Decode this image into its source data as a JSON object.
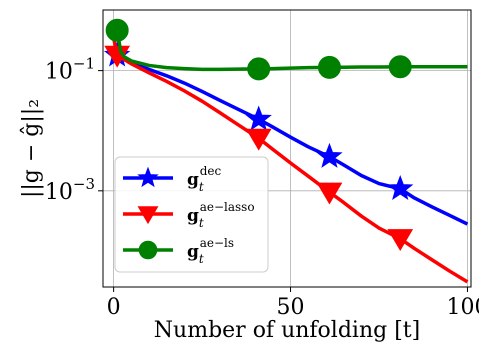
{
  "chart_data": {
    "type": "line",
    "title": "",
    "xlabel": "Number of unfolding [t]",
    "ylabel": "||g − ĝ||₂",
    "x_scale": "linear",
    "y_scale": "log",
    "xlim": [
      -3,
      101
    ],
    "ylim": [
      2.51e-05,
      1.02
    ],
    "x_ticks": [
      0,
      50,
      100
    ],
    "x_tick_labels": [
      "0",
      "50",
      "100"
    ],
    "y_ticks": [
      0.1,
      0.001
    ],
    "y_tick_labels": [
      "10−1",
      "10−3"
    ],
    "grid": true,
    "legend_position": "lower-left",
    "series": [
      {
        "name": "g_t^dec",
        "legend_base": "g",
        "legend_sub": "t",
        "legend_sup": "dec",
        "color": "#0000ff",
        "marker": "star",
        "x": [
          1,
          5,
          10,
          15,
          20,
          25,
          30,
          35,
          41,
          45,
          50,
          55,
          61,
          65,
          70,
          75,
          81,
          85,
          90,
          95,
          100
        ],
        "y": [
          0.18,
          0.135,
          0.105,
          0.082,
          0.062,
          0.045,
          0.032,
          0.023,
          0.0155,
          0.0115,
          0.0078,
          0.0054,
          0.0037,
          0.0027,
          0.0018,
          0.00132,
          0.00108,
          0.00076,
          0.00054,
          0.00039,
          0.00028
        ]
      },
      {
        "name": "g_t^ae-lasso",
        "legend_base": "g",
        "legend_sub": "t",
        "legend_sup": "ae−lasso",
        "color": "#ff0000",
        "marker": "triangle-down",
        "x": [
          0,
          1,
          5,
          10,
          15,
          20,
          25,
          30,
          35,
          41,
          45,
          50,
          55,
          61,
          65,
          70,
          75,
          81,
          85,
          90,
          95,
          100
        ],
        "y": [
          0.35,
          0.18,
          0.13,
          0.092,
          0.066,
          0.046,
          0.031,
          0.02,
          0.0128,
          0.0075,
          0.0049,
          0.0029,
          0.00175,
          0.00095,
          0.00064,
          0.00038,
          0.00024,
          0.00016,
          0.00011,
          7.1e-05,
          4.6e-05,
          3.05e-05
        ]
      },
      {
        "name": "g_t^ae-ls",
        "legend_base": "g",
        "legend_sub": "t",
        "legend_sup": "ae−ls",
        "color": "#008000",
        "marker": "circle",
        "x": [
          1,
          2,
          3,
          5,
          10,
          15,
          20,
          25,
          30,
          35,
          41,
          45,
          50,
          55,
          61,
          65,
          70,
          75,
          81,
          85,
          90,
          95,
          100
        ],
        "y": [
          0.47,
          0.21,
          0.17,
          0.145,
          0.122,
          0.112,
          0.108,
          0.105,
          0.105,
          0.106,
          0.107,
          0.108,
          0.11,
          0.112,
          0.113,
          0.114,
          0.115,
          0.115,
          0.116,
          0.116,
          0.116,
          0.116,
          0.116
        ]
      }
    ]
  }
}
